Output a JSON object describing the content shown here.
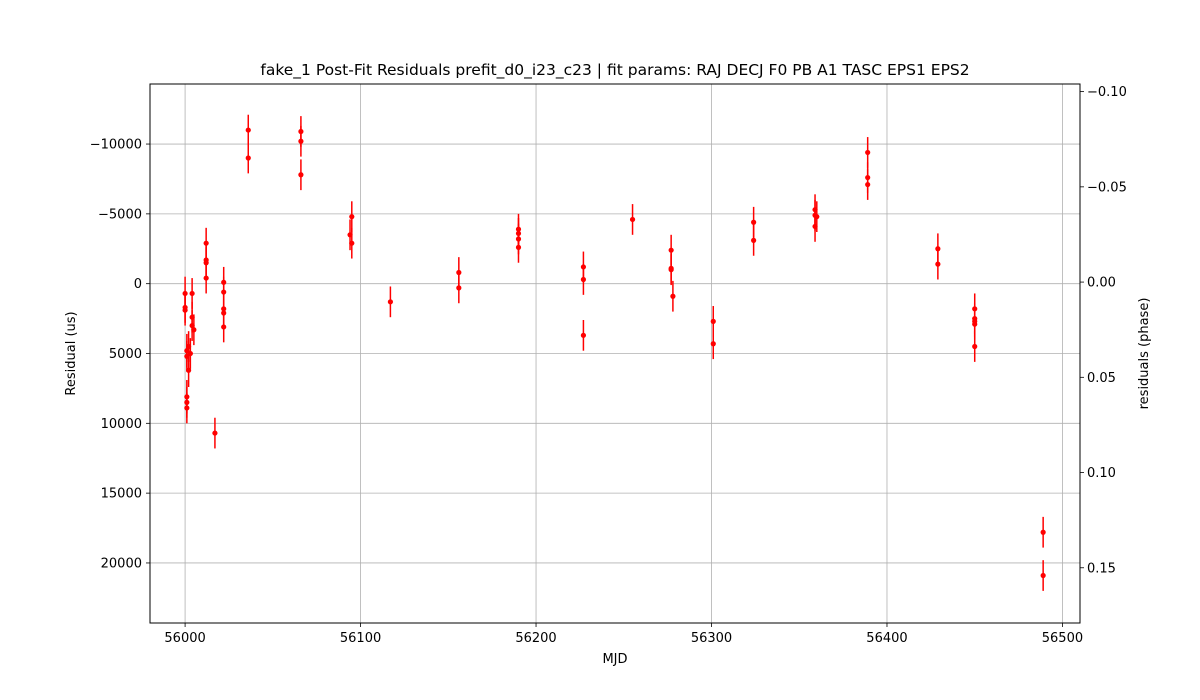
{
  "chart_data": {
    "type": "scatter",
    "title": "fake_1 Post-Fit Residuals prefit_d0_i23_c23 | fit params: RAJ DECJ F0 PB A1 TASC EPS1 EPS2",
    "xlabel": "MJD",
    "ylabel": "Residual (us)",
    "y2label": "residuals (phase)",
    "xlim": [
      55980,
      56510
    ],
    "ylim": [
      24300,
      -14300
    ],
    "y_inverted": true,
    "y2lim": [
      0.179,
      -0.104
    ],
    "grid": true,
    "marker_color": "#ff0000",
    "errorbar_color": "#ff0000",
    "x_ticks": [
      "56000",
      "56100",
      "56200",
      "56300",
      "56400",
      "56500"
    ],
    "y_ticks": [
      "−10000",
      "−5000",
      "0",
      "5000",
      "10000",
      "15000",
      "20000"
    ],
    "y2_ticks": [
      "−0.10",
      "−0.05",
      "0.00",
      "0.05",
      "0.10",
      "0.15"
    ],
    "points": [
      {
        "x": 56000,
        "y": 700,
        "err": 1200
      },
      {
        "x": 56000,
        "y": 1700,
        "err": 1100
      },
      {
        "x": 56000,
        "y": 1900,
        "err": 1100
      },
      {
        "x": 56001,
        "y": 4800,
        "err": 1200
      },
      {
        "x": 56001,
        "y": 5200,
        "err": 1100
      },
      {
        "x": 56001,
        "y": 8100,
        "err": 1200
      },
      {
        "x": 56001,
        "y": 8500,
        "err": 1100
      },
      {
        "x": 56001,
        "y": 8900,
        "err": 1100
      },
      {
        "x": 56002,
        "y": 4500,
        "err": 1100
      },
      {
        "x": 56002,
        "y": 6200,
        "err": 1200
      },
      {
        "x": 56003,
        "y": 5000,
        "err": 1100
      },
      {
        "x": 56004,
        "y": 700,
        "err": 1100
      },
      {
        "x": 56004,
        "y": 2400,
        "err": 1100
      },
      {
        "x": 56004,
        "y": 3000,
        "err": 1100
      },
      {
        "x": 56005,
        "y": 3300,
        "err": 1100
      },
      {
        "x": 56012,
        "y": -2900,
        "err": 1100
      },
      {
        "x": 56012,
        "y": -1700,
        "err": 1100
      },
      {
        "x": 56012,
        "y": -1500,
        "err": 1100
      },
      {
        "x": 56012,
        "y": -400,
        "err": 1100
      },
      {
        "x": 56017,
        "y": 10700,
        "err": 1100
      },
      {
        "x": 56022,
        "y": -100,
        "err": 1100
      },
      {
        "x": 56022,
        "y": 600,
        "err": 1100
      },
      {
        "x": 56022,
        "y": 1800,
        "err": 1100
      },
      {
        "x": 56022,
        "y": 2100,
        "err": 1100
      },
      {
        "x": 56022,
        "y": 3100,
        "err": 1100
      },
      {
        "x": 56036,
        "y": -11000,
        "err": 1100
      },
      {
        "x": 56036,
        "y": -9000,
        "err": 1100
      },
      {
        "x": 56066,
        "y": -10900,
        "err": 1100
      },
      {
        "x": 56066,
        "y": -10200,
        "err": 1100
      },
      {
        "x": 56066,
        "y": -7800,
        "err": 1100
      },
      {
        "x": 56094,
        "y": -3500,
        "err": 1100
      },
      {
        "x": 56095,
        "y": -4800,
        "err": 1100
      },
      {
        "x": 56095,
        "y": -2900,
        "err": 1100
      },
      {
        "x": 56117,
        "y": 1300,
        "err": 1100
      },
      {
        "x": 56156,
        "y": -800,
        "err": 1100
      },
      {
        "x": 56156,
        "y": 300,
        "err": 1100
      },
      {
        "x": 56190,
        "y": -3900,
        "err": 1100
      },
      {
        "x": 56190,
        "y": -3600,
        "err": 1100
      },
      {
        "x": 56190,
        "y": -3200,
        "err": 1100
      },
      {
        "x": 56190,
        "y": -2600,
        "err": 1100
      },
      {
        "x": 56227,
        "y": -1200,
        "err": 1100
      },
      {
        "x": 56227,
        "y": -300,
        "err": 1100
      },
      {
        "x": 56227,
        "y": 3700,
        "err": 1100
      },
      {
        "x": 56255,
        "y": -4600,
        "err": 1100
      },
      {
        "x": 56277,
        "y": -2400,
        "err": 1100
      },
      {
        "x": 56277,
        "y": -1100,
        "err": 1100
      },
      {
        "x": 56277,
        "y": -1000,
        "err": 1100
      },
      {
        "x": 56278,
        "y": 900,
        "err": 1100
      },
      {
        "x": 56301,
        "y": 2700,
        "err": 1100
      },
      {
        "x": 56301,
        "y": 4300,
        "err": 1100
      },
      {
        "x": 56324,
        "y": -4400,
        "err": 1100
      },
      {
        "x": 56324,
        "y": -3100,
        "err": 1100
      },
      {
        "x": 56359,
        "y": -5300,
        "err": 1100
      },
      {
        "x": 56359,
        "y": -4900,
        "err": 1100
      },
      {
        "x": 56359,
        "y": -4100,
        "err": 1100
      },
      {
        "x": 56360,
        "y": -4800,
        "err": 1100
      },
      {
        "x": 56389,
        "y": -9400,
        "err": 1100
      },
      {
        "x": 56389,
        "y": -7600,
        "err": 1100
      },
      {
        "x": 56389,
        "y": -7100,
        "err": 1100
      },
      {
        "x": 56429,
        "y": -2500,
        "err": 1100
      },
      {
        "x": 56429,
        "y": -1400,
        "err": 1100
      },
      {
        "x": 56450,
        "y": 1800,
        "err": 1100
      },
      {
        "x": 56450,
        "y": 2500,
        "err": 1100
      },
      {
        "x": 56450,
        "y": 2700,
        "err": 1100
      },
      {
        "x": 56450,
        "y": 2900,
        "err": 1100
      },
      {
        "x": 56450,
        "y": 4500,
        "err": 1100
      },
      {
        "x": 56489,
        "y": 17800,
        "err": 1100
      },
      {
        "x": 56489,
        "y": 20900,
        "err": 1100
      }
    ]
  }
}
